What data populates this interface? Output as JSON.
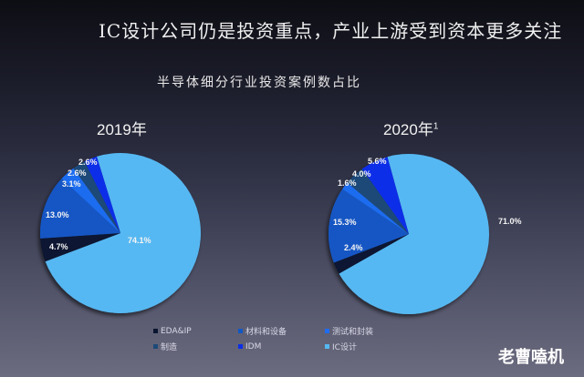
{
  "title": "IC设计公司仍是投资重点，产业上游受到资本更多关注",
  "subtitle": "半导体细分行业投资案例数占比",
  "watermark": "老曹嗑机",
  "colors": {
    "EDA&IP": "#0a1530",
    "制造": "#1d4a78",
    "材料和设备": "#1257c4",
    "IDM": "#0b2ee8",
    "测试和封装": "#1f6cf0",
    "IC设计": "#56b8f2"
  },
  "legend": [
    {
      "label": "EDA&IP",
      "color": "#0a1530"
    },
    {
      "label": "材料和设备",
      "color": "#1257c4"
    },
    {
      "label": "测试和封装",
      "color": "#1f6cf0"
    },
    {
      "label": "制造",
      "color": "#1d4a78"
    },
    {
      "label": "IDM",
      "color": "#0b2ee8"
    },
    {
      "label": "IC设计",
      "color": "#56b8f2"
    }
  ],
  "chart_data": [
    {
      "type": "pie",
      "title": "2019年",
      "categories": [
        "IC设计",
        "EDA&IP",
        "材料和设备",
        "测试和封装",
        "制造",
        "IDM"
      ],
      "values": [
        74.1,
        4.7,
        13.0,
        3.1,
        2.6,
        2.6
      ],
      "labels": [
        "74.1%",
        "4.7%",
        "13.0%",
        "3.1%",
        "2.6%",
        "2.6%"
      ],
      "unit": "%"
    },
    {
      "type": "pie",
      "title": "2020年",
      "title_superscript": "1",
      "categories": [
        "IC设计",
        "EDA&IP",
        "材料和设备",
        "测试和封装",
        "制造",
        "IDM"
      ],
      "values": [
        71.0,
        2.4,
        15.3,
        1.6,
        4.0,
        5.6
      ],
      "labels": [
        "71.0%",
        "2.4%",
        "15.3%",
        "1.6%",
        "4.0%",
        "5.6%"
      ],
      "unit": "%"
    }
  ]
}
